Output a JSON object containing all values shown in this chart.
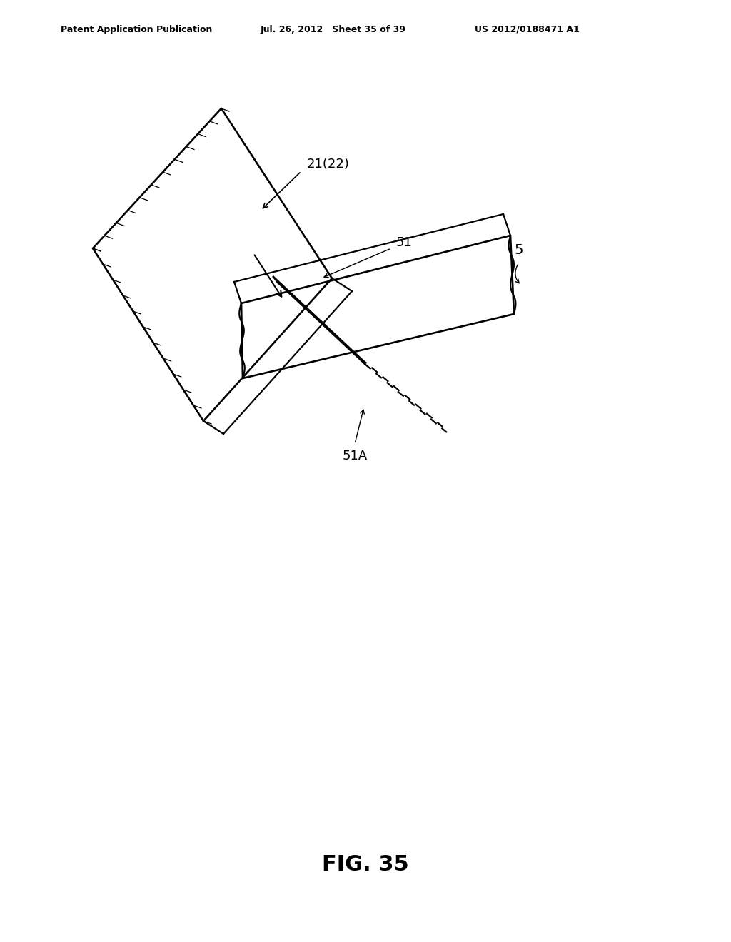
{
  "background_color": "#ffffff",
  "line_color": "#000000",
  "header_left": "Patent Application Publication",
  "header_mid": "Jul. 26, 2012   Sheet 35 of 39",
  "header_right": "US 2012/0188471 A1",
  "figure_label": "FIG. 35",
  "label_21_22": "21(22)",
  "label_51": "51",
  "label_51A": "51A",
  "label_5": "5"
}
